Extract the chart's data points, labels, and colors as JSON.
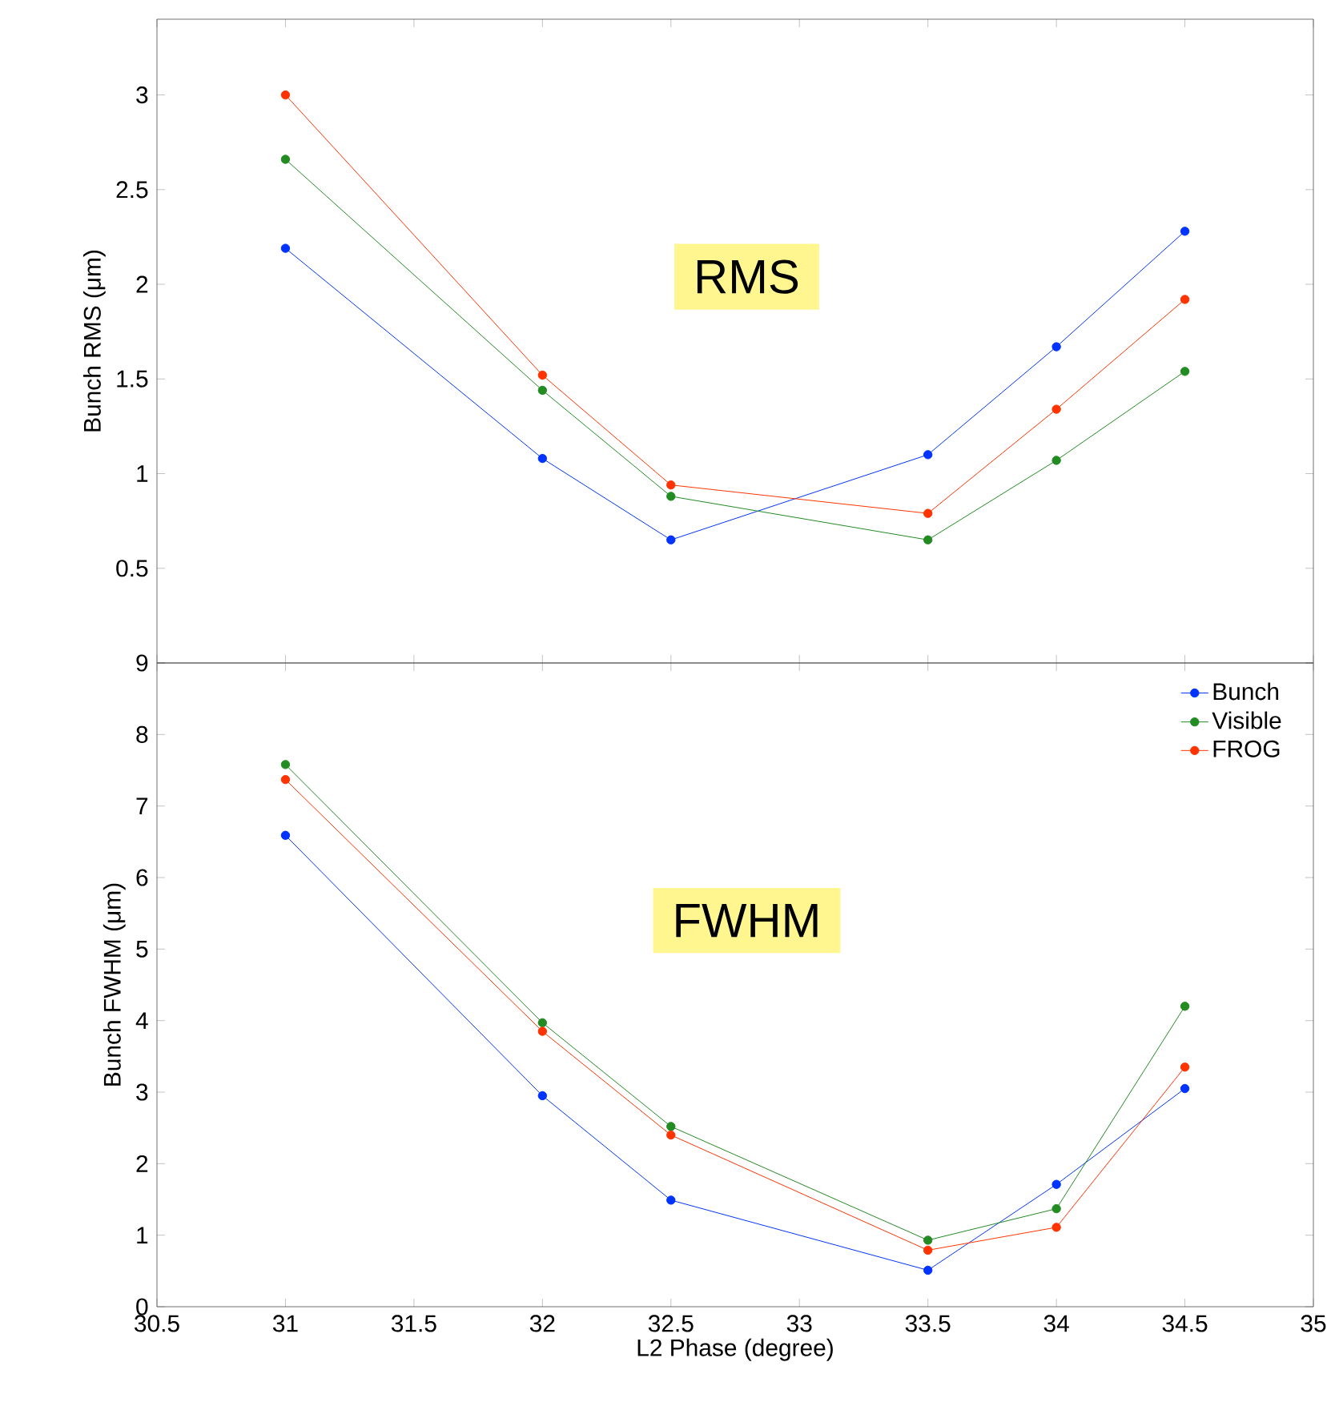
{
  "chart_data": [
    {
      "type": "line",
      "ylabel": "Bunch RMS  (μm)",
      "annotations": [
        "RMS"
      ],
      "x": [
        31,
        32,
        32.5,
        33.5,
        34,
        34.5
      ],
      "xlim": [
        30.5,
        35
      ],
      "xticks": [
        30.5,
        31,
        31.5,
        32,
        32.5,
        33,
        33.5,
        34,
        34.5,
        35
      ],
      "ylim": [
        0,
        3.4
      ],
      "yticks": [
        {
          "value": 0,
          "label": null
        },
        0.5,
        1,
        1.5,
        2,
        2.5,
        3
      ],
      "tick_labels": "y",
      "marker": "circle",
      "grid": false,
      "legend": false,
      "series": [
        {
          "color": "#0033ff",
          "values": [
            2.19,
            1.08,
            0.65,
            1.1,
            1.67,
            2.28
          ]
        },
        {
          "color": "#228b22",
          "values": [
            2.66,
            1.44,
            0.88,
            0.65,
            1.07,
            1.54
          ]
        },
        {
          "color": "#ff3300",
          "values": [
            3.0,
            1.52,
            0.94,
            0.79,
            1.34,
            1.92
          ]
        }
      ]
    },
    {
      "type": "line",
      "xlabel": "L2 Phase  (degree)",
      "ylabel": "Bunch FWHM  (μm)",
      "annotations": [
        "FWHM"
      ],
      "x": [
        31,
        32,
        32.5,
        33.5,
        34,
        34.5
      ],
      "xlim": [
        30.5,
        35
      ],
      "xticks": [
        30.5,
        31,
        31.5,
        32,
        32.5,
        33,
        33.5,
        34,
        34.5,
        35
      ],
      "ylim": [
        0,
        9
      ],
      "yticks": [
        0,
        1,
        2,
        3,
        4,
        5,
        6,
        7,
        8,
        9
      ],
      "marker": "circle",
      "grid": false,
      "legend": "top right",
      "series": [
        {
          "name": "Bunch",
          "color": "#0033ff",
          "values": [
            6.59,
            2.95,
            1.49,
            0.51,
            1.71,
            3.05
          ]
        },
        {
          "name": "Visible",
          "color": "#228b22",
          "values": [
            7.58,
            3.97,
            2.52,
            0.93,
            1.37,
            4.2
          ]
        },
        {
          "name": "FROG",
          "color": "#ff3300",
          "values": [
            7.37,
            3.85,
            2.4,
            0.79,
            1.11,
            3.35
          ]
        }
      ]
    }
  ]
}
